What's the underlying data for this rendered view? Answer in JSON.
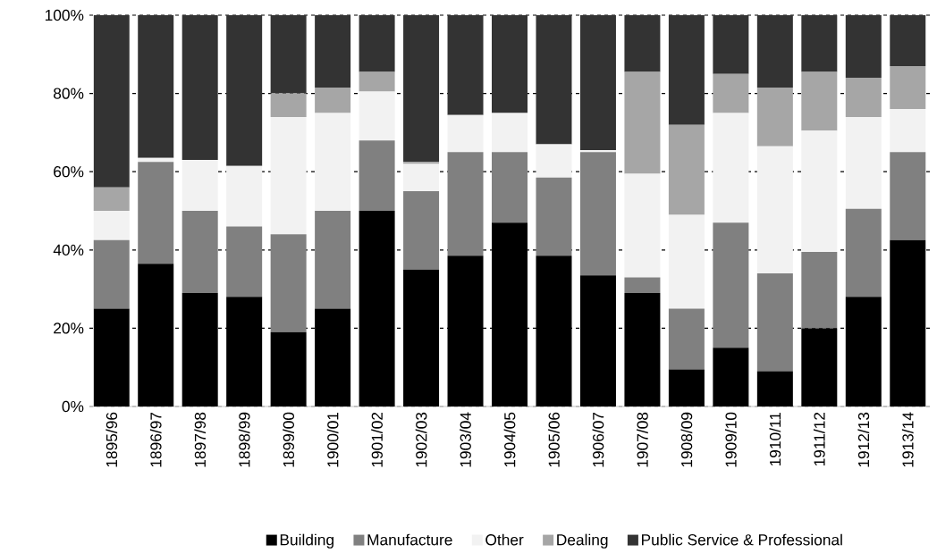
{
  "chart_data": {
    "type": "bar",
    "stacked": true,
    "categories": [
      "1895/96",
      "1896/97",
      "1897/98",
      "1898/99",
      "1899/00",
      "1900/01",
      "1901/02",
      "1902/03",
      "1903/04",
      "1904/05",
      "1905/06",
      "1906/07",
      "1907/08",
      "1908/09",
      "1909/10",
      "1910/11",
      "1911/12",
      "1912/13",
      "1913/14"
    ],
    "series": [
      {
        "name": "Building",
        "color": "#000000",
        "values": [
          25,
          36.5,
          29,
          28,
          19,
          25,
          50,
          35,
          38.5,
          47,
          38.5,
          33.5,
          29,
          9.5,
          15,
          9,
          20,
          28,
          42.5
        ]
      },
      {
        "name": "Manufacture",
        "color": "#808080",
        "values": [
          17.5,
          26,
          21,
          18,
          25,
          25,
          18,
          20,
          26.5,
          18,
          20,
          31.5,
          4,
          15.5,
          32,
          25,
          19.5,
          22.5,
          22.5
        ]
      },
      {
        "name": "Other",
        "color": "#f2f2f2",
        "values": [
          7.5,
          1,
          13,
          15.5,
          30,
          25,
          12.5,
          7,
          9.5,
          10,
          8.5,
          0.5,
          26.5,
          24,
          28,
          32.5,
          31,
          23.5,
          11
        ]
      },
      {
        "name": "Dealing",
        "color": "#a6a6a6",
        "values": [
          6,
          0,
          0,
          0,
          6,
          6.5,
          5,
          0.5,
          0,
          0,
          0,
          0,
          26,
          23,
          10,
          15,
          15,
          10,
          11
        ]
      },
      {
        "name": "Public Service & Professional",
        "color": "#333333",
        "values": [
          44,
          36.5,
          37,
          38.5,
          20,
          18.5,
          14.5,
          37.5,
          25.5,
          25,
          33,
          34.5,
          14.5,
          28,
          15,
          18.5,
          14.5,
          16,
          13
        ]
      }
    ],
    "ylim": [
      0,
      100
    ],
    "yticks": [
      {
        "value": 0,
        "label": "0%"
      },
      {
        "value": 20,
        "label": "20%"
      },
      {
        "value": 40,
        "label": "40%"
      },
      {
        "value": 60,
        "label": "60%"
      },
      {
        "value": 80,
        "label": "80%"
      },
      {
        "value": 100,
        "label": "100%"
      }
    ],
    "grid": "y",
    "legend": "bottom"
  }
}
